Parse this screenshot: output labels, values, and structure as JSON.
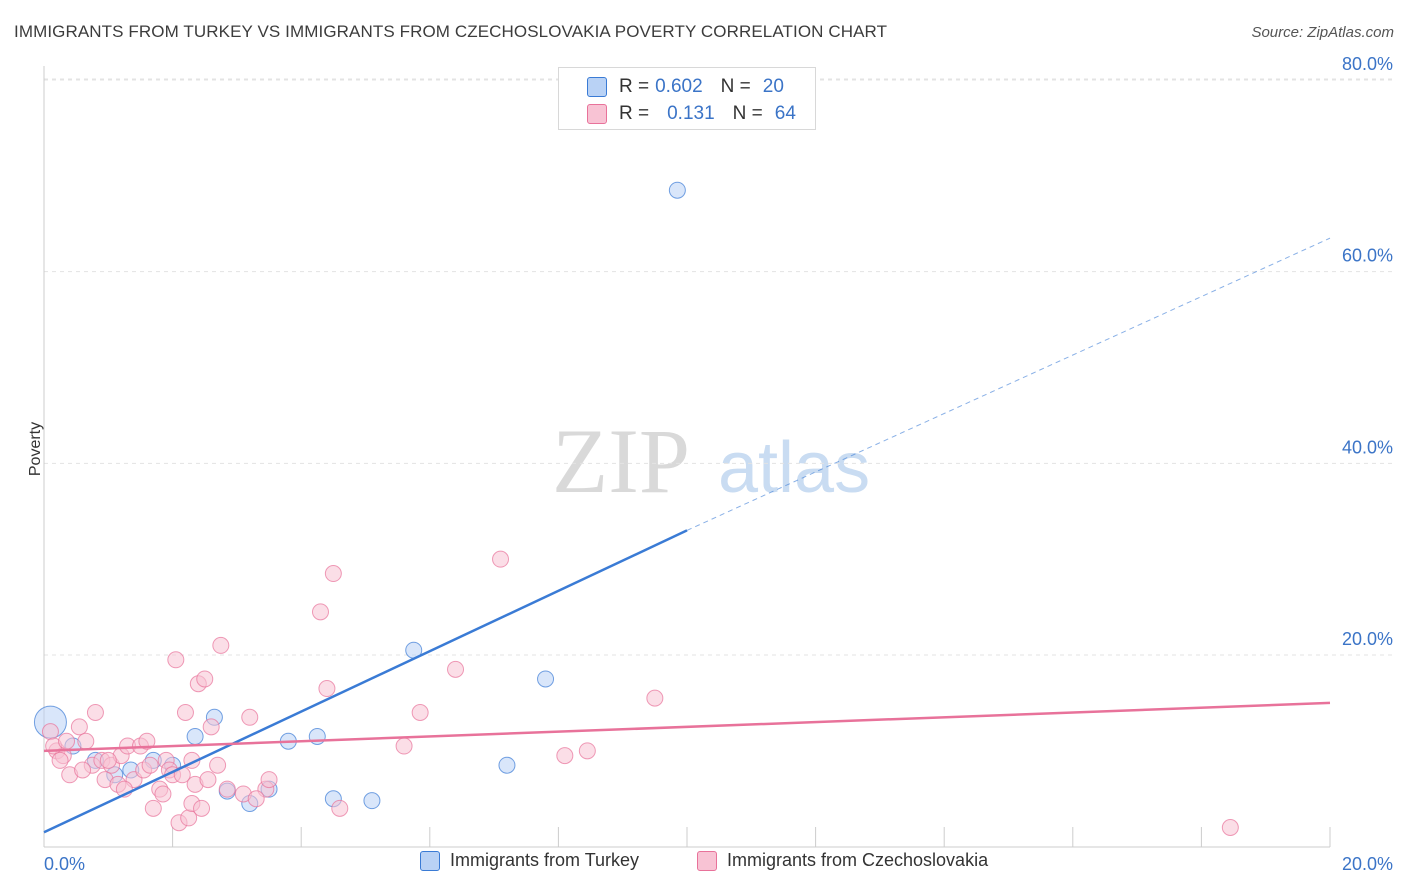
{
  "header": {
    "title": "IMMIGRANTS FROM TURKEY VS IMMIGRANTS FROM CZECHOSLOVAKIA POVERTY CORRELATION CHART",
    "source": "Source: ZipAtlas.com"
  },
  "watermark": {
    "zip": "ZIP",
    "atlas": "atlas"
  },
  "colors": {
    "turkey": "#3a7bd5",
    "turkey_fill": "#b9d2f5",
    "czech": "#e8729a",
    "czech_fill": "#f8c3d4",
    "axis_label": "#3b74c7",
    "grid": "#e3e3e3"
  },
  "stats": [
    {
      "r_label": "R =",
      "r_value": "0.602",
      "n_label": "N =",
      "n_value": "20",
      "series": "turkey"
    },
    {
      "r_label": "R =",
      "r_value": "0.131",
      "n_label": "N =",
      "n_value": "64",
      "series": "czech"
    }
  ],
  "chart_data": {
    "type": "scatter",
    "title": "IMMIGRANTS FROM TURKEY VS IMMIGRANTS FROM CZECHOSLOVAKIA POVERTY CORRELATION CHART",
    "xlabel": "",
    "ylabel": "Poverty",
    "xlim": [
      0,
      20
    ],
    "ylim": [
      0,
      85
    ],
    "x_ticks": [
      {
        "value": 0,
        "label": "0.0%"
      },
      {
        "value": 20,
        "label": "20.0%"
      }
    ],
    "y_ticks": [
      {
        "value": 20,
        "label": "20.0%"
      },
      {
        "value": 40,
        "label": "40.0%"
      },
      {
        "value": 60,
        "label": "60.0%"
      },
      {
        "value": 80,
        "label": "80.0%"
      }
    ],
    "grid": true,
    "legend_position": "bottom",
    "series": [
      {
        "name": "Immigrants from Turkey",
        "color": "#3a7bd5",
        "points": [
          [
            0.1,
            13.0
          ],
          [
            0.45,
            10.5
          ],
          [
            0.8,
            9.0
          ],
          [
            1.1,
            7.5
          ],
          [
            1.35,
            8.0
          ],
          [
            1.7,
            9.0
          ],
          [
            2.0,
            8.5
          ],
          [
            2.35,
            11.5
          ],
          [
            2.65,
            13.5
          ],
          [
            2.85,
            5.8
          ],
          [
            3.2,
            4.5
          ],
          [
            3.5,
            6.0
          ],
          [
            3.8,
            11.0
          ],
          [
            4.25,
            11.5
          ],
          [
            4.5,
            5.0
          ],
          [
            5.1,
            4.8
          ],
          [
            5.75,
            20.5
          ],
          [
            7.2,
            8.5
          ],
          [
            7.8,
            17.5
          ],
          [
            9.85,
            68.5
          ]
        ],
        "trend": {
          "x": [
            0,
            10
          ],
          "y": [
            1.5,
            33
          ]
        },
        "trend_dashed_extension": {
          "x": [
            10,
            20
          ],
          "y": [
            33,
            63.5
          ]
        }
      },
      {
        "name": "Immigrants from Czechoslovakia",
        "color": "#e8729a",
        "points": [
          [
            0.1,
            12.0
          ],
          [
            0.2,
            10.0
          ],
          [
            0.3,
            9.5
          ],
          [
            0.4,
            7.5
          ],
          [
            0.55,
            12.5
          ],
          [
            0.65,
            11.0
          ],
          [
            0.75,
            8.5
          ],
          [
            0.8,
            14.0
          ],
          [
            0.9,
            9.0
          ],
          [
            0.95,
            7.0
          ],
          [
            1.05,
            8.5
          ],
          [
            1.15,
            6.5
          ],
          [
            1.2,
            9.5
          ],
          [
            1.3,
            10.5
          ],
          [
            1.4,
            7.0
          ],
          [
            1.5,
            10.5
          ],
          [
            1.55,
            8.0
          ],
          [
            1.6,
            11.0
          ],
          [
            1.7,
            4.0
          ],
          [
            1.8,
            6.0
          ],
          [
            1.9,
            9.0
          ],
          [
            1.95,
            8.0
          ],
          [
            2.0,
            7.5
          ],
          [
            2.05,
            19.5
          ],
          [
            2.1,
            2.5
          ],
          [
            2.15,
            7.5
          ],
          [
            2.2,
            14.0
          ],
          [
            2.25,
            3.0
          ],
          [
            2.3,
            4.5
          ],
          [
            2.35,
            6.5
          ],
          [
            2.4,
            17.0
          ],
          [
            2.5,
            17.5
          ],
          [
            2.55,
            7.0
          ],
          [
            2.6,
            12.5
          ],
          [
            2.7,
            8.5
          ],
          [
            2.75,
            21.0
          ],
          [
            2.85,
            6.0
          ],
          [
            3.1,
            5.5
          ],
          [
            3.2,
            13.5
          ],
          [
            3.45,
            6.0
          ],
          [
            3.5,
            7.0
          ],
          [
            4.3,
            24.5
          ],
          [
            4.4,
            16.5
          ],
          [
            4.5,
            28.5
          ],
          [
            4.6,
            4.0
          ],
          [
            5.6,
            10.5
          ],
          [
            5.85,
            14.0
          ],
          [
            6.4,
            18.5
          ],
          [
            7.1,
            30.0
          ],
          [
            8.1,
            9.5
          ],
          [
            8.45,
            10.0
          ],
          [
            9.5,
            15.5
          ],
          [
            18.45,
            2.0
          ],
          [
            0.15,
            10.5
          ],
          [
            0.25,
            9.0
          ],
          [
            0.6,
            8.0
          ],
          [
            1.0,
            9.0
          ],
          [
            1.25,
            6.0
          ],
          [
            1.65,
            8.5
          ],
          [
            1.85,
            5.5
          ],
          [
            2.3,
            9.0
          ],
          [
            2.45,
            4.0
          ],
          [
            3.3,
            5.0
          ],
          [
            0.35,
            11.0
          ]
        ],
        "trend": {
          "x": [
            0,
            20
          ],
          "y": [
            10.0,
            15.0
          ]
        }
      }
    ]
  }
}
